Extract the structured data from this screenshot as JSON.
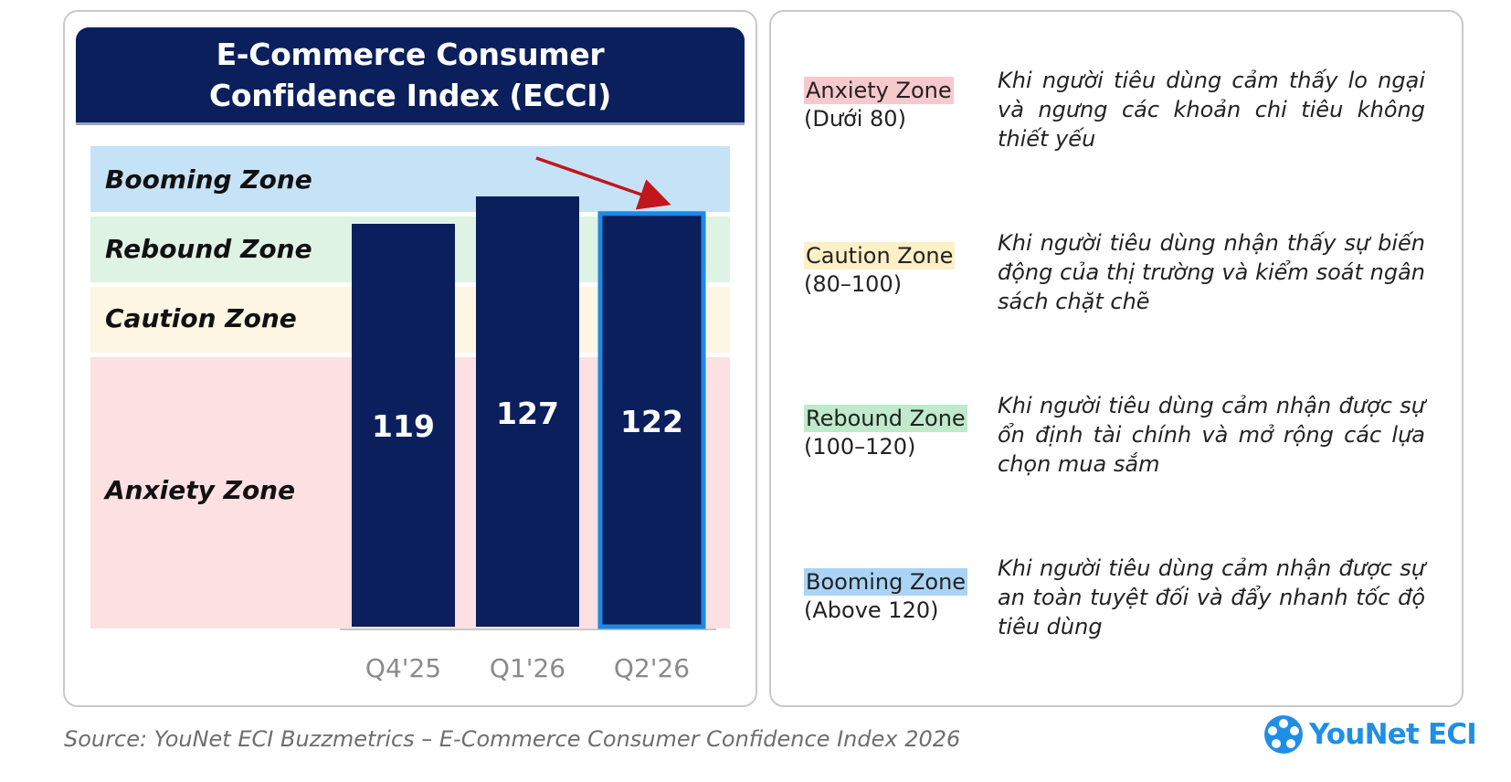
{
  "chart_data": {
    "type": "bar",
    "title": "E-Commerce Consumer\nConfidence Index (ECCI)",
    "categories": [
      "Q4'25",
      "Q1'26",
      "Q2'26"
    ],
    "values": [
      119,
      127,
      122
    ],
    "highlighted_category": "Q2'26",
    "zones": [
      "Booming Zone",
      "Rebound Zone",
      "Caution Zone",
      "Anxiety Zone"
    ],
    "colors": {
      "bar": "#0a1f5c",
      "highlight_border": "#1e88e5",
      "booming": "#c6e2f7",
      "rebound": "#dff3e5",
      "caution": "#fdf6e2",
      "anxiety": "#fde0e2",
      "arrow": "#c0161c"
    }
  },
  "legend": [
    {
      "zone": "Anxiety Zone",
      "range": "(Dưới 80)",
      "color": "#f8c9cc",
      "description": "Khi người tiêu dùng cảm thấy lo ngại và ngưng các khoản chi tiêu không thiết yếu"
    },
    {
      "zone": "Caution Zone",
      "range": "(80–100)",
      "color": "#fdf0c6",
      "description": "Khi người tiêu dùng nhận thấy sự biến động của thị trường và kiểm soát ngân sách chặt chẽ"
    },
    {
      "zone": "Rebound Zone",
      "range": "(100–120)",
      "color": "#bfeacb",
      "description": "Khi người tiêu dùng cảm nhận được sự ổn định tài chính và mở rộng các lựa chọn mua sắm"
    },
    {
      "zone": "Booming Zone",
      "range": "(Above 120)",
      "color": "#a9d4f5",
      "description": "Khi người tiêu dùng cảm nhận được sự an toàn tuyệt đối và đẩy nhanh tốc độ tiêu dùng"
    }
  ],
  "source": "Source: YouNet ECI Buzzmetrics – E-Commerce Consumer Confidence Index 2026",
  "brand": {
    "name": "YouNet ECI",
    "icon": "younet-logo-icon",
    "color": "#1f8fe6"
  }
}
